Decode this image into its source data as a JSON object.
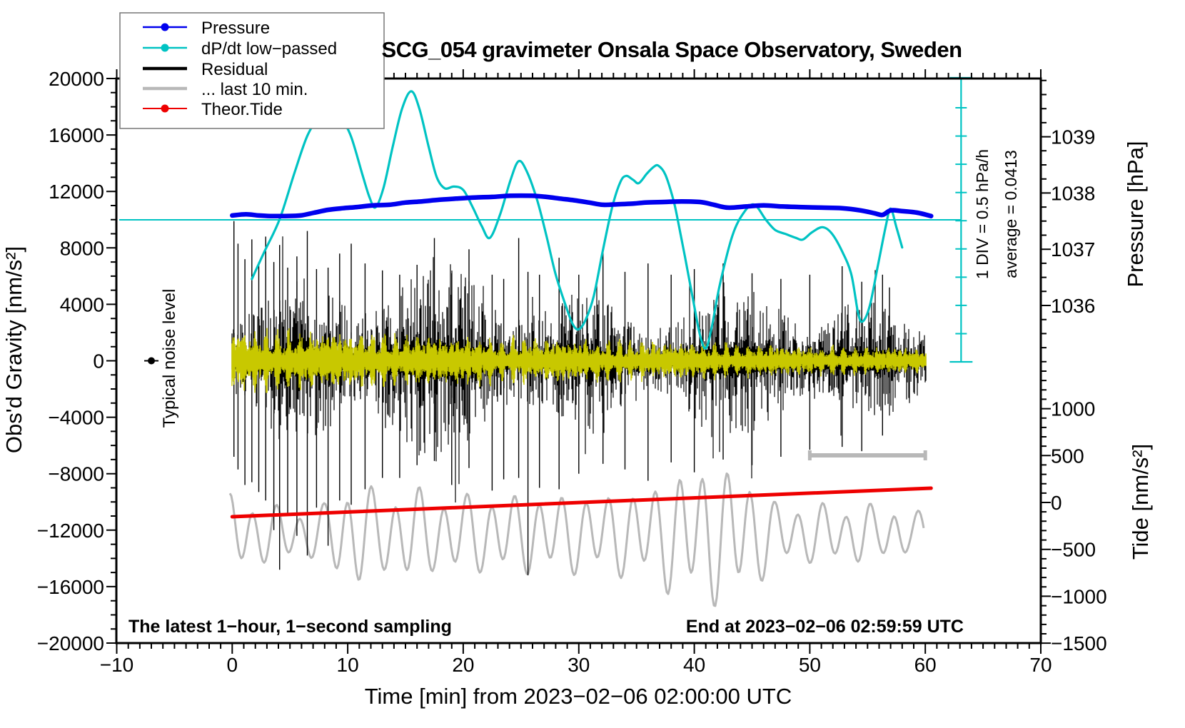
{
  "title": "SCG_054 gravimeter Onsala Space Observatory, Sweden",
  "legend": {
    "items": [
      {
        "label": "Pressure",
        "color": "#0000ee",
        "marker": "dot",
        "width": 2.5
      },
      {
        "label": "dP/dt low−passed",
        "color": "#00c3c3",
        "marker": "dot",
        "width": 2.5
      },
      {
        "label": "Residual",
        "color": "#000000",
        "marker": "none",
        "width": 4.5
      },
      {
        "label": "... last 10 min.",
        "color": "#b8b8b8",
        "marker": "none",
        "width": 4.5
      },
      {
        "label": "Theor.Tide",
        "color": "#ee0000",
        "marker": "dot",
        "width": 2
      }
    ]
  },
  "annotations": {
    "bottom_left": "The latest 1−hour, 1−second sampling",
    "bottom_right": "End at 2023−02−06 02:59:59 UTC",
    "noise_marker_label": "Typical noise level",
    "div_label": "1 DIV = 0.5 hPa/h",
    "avg_label": "average = 0.0413"
  },
  "axes": {
    "x": {
      "label": "Time [min] from 2023−02−06 02:00:00 UTC",
      "min": -10,
      "max": 70,
      "major_ticks": [
        -10,
        0,
        10,
        20,
        30,
        40,
        50,
        60,
        70
      ],
      "minor_step": 1
    },
    "y_left": {
      "label": "Obs'd Gravity [nm/s²]",
      "min": -20000,
      "max": 20000,
      "major_step": 4000,
      "minor_step": 1000
    },
    "y_right_pressure": {
      "label": "Pressure [hPa]",
      "min": 1035,
      "max": 1040,
      "labeled_ticks": [
        1036,
        1037,
        1038,
        1039
      ],
      "minor_step": 0.25
    },
    "y_right_tide": {
      "label": "Tide [nm/s²]",
      "min": -1500,
      "max": 1500,
      "labeled_ticks": [
        1000,
        500,
        0,
        -500,
        -1000,
        -1500
      ],
      "minor_step": 100
    }
  },
  "chart_data": {
    "type": "line",
    "grid": false,
    "legend_position": "top-left",
    "series": [
      {
        "name": "Pressure",
        "units": "hPa",
        "axis": "pressure",
        "color": "#0000ee",
        "points": [
          [
            0,
            1037.6
          ],
          [
            1.2,
            1037.62
          ],
          [
            2.3,
            1037.6
          ],
          [
            3.3,
            1037.59
          ],
          [
            4.6,
            1037.59
          ],
          [
            5.9,
            1037.6
          ],
          [
            7.1,
            1037.65
          ],
          [
            8.3,
            1037.7
          ],
          [
            9.6,
            1037.73
          ],
          [
            10.8,
            1037.75
          ],
          [
            12.2,
            1037.78
          ],
          [
            13.6,
            1037.79
          ],
          [
            15.0,
            1037.83
          ],
          [
            16.4,
            1037.85
          ],
          [
            17.9,
            1037.88
          ],
          [
            19.4,
            1037.9
          ],
          [
            21.0,
            1037.92
          ],
          [
            22.5,
            1037.93
          ],
          [
            24.1,
            1037.95
          ],
          [
            25.9,
            1037.95
          ],
          [
            27.2,
            1037.93
          ],
          [
            28.4,
            1037.9
          ],
          [
            29.6,
            1037.87
          ],
          [
            30.9,
            1037.83
          ],
          [
            32.1,
            1037.79
          ],
          [
            33.4,
            1037.8
          ],
          [
            34.6,
            1037.81
          ],
          [
            35.8,
            1037.83
          ],
          [
            37.4,
            1037.84
          ],
          [
            38.9,
            1037.85
          ],
          [
            40.5,
            1037.84
          ],
          [
            41.7,
            1037.79
          ],
          [
            42.9,
            1037.74
          ],
          [
            44.5,
            1037.76
          ],
          [
            46.0,
            1037.78
          ],
          [
            47.6,
            1037.76
          ],
          [
            49.1,
            1037.75
          ],
          [
            51.0,
            1037.74
          ],
          [
            52.8,
            1037.73
          ],
          [
            54.4,
            1037.69
          ],
          [
            55.6,
            1037.64
          ],
          [
            56.3,
            1037.61
          ],
          [
            57.0,
            1037.69
          ],
          [
            57.9,
            1037.68
          ],
          [
            59.3,
            1037.65
          ],
          [
            60.5,
            1037.59
          ]
        ]
      },
      {
        "name": "dP/dt low-passed",
        "units": "hPa/h",
        "axis": "dpdt",
        "color": "#00c3c3",
        "zero_line_at_average": true,
        "points": [
          [
            1.7,
            -1.05
          ],
          [
            2.8,
            -0.56
          ],
          [
            4.1,
            0.01
          ],
          [
            5.4,
            0.84
          ],
          [
            6.5,
            1.49
          ],
          [
            7.5,
            1.81
          ],
          [
            8.5,
            1.97
          ],
          [
            9.5,
            1.77
          ],
          [
            10.3,
            1.47
          ],
          [
            11.3,
            0.78
          ],
          [
            11.9,
            0.39
          ],
          [
            12.4,
            0.22
          ],
          [
            13.1,
            0.57
          ],
          [
            13.9,
            1.3
          ],
          [
            14.7,
            1.97
          ],
          [
            15.5,
            2.28
          ],
          [
            16.2,
            1.97
          ],
          [
            17.0,
            1.3
          ],
          [
            17.7,
            0.76
          ],
          [
            18.4,
            0.56
          ],
          [
            19.2,
            0.59
          ],
          [
            20.0,
            0.53
          ],
          [
            20.8,
            0.23
          ],
          [
            21.6,
            -0.11
          ],
          [
            22.3,
            -0.32
          ],
          [
            23.2,
            0.1
          ],
          [
            24.1,
            0.71
          ],
          [
            24.8,
            1.04
          ],
          [
            25.5,
            0.86
          ],
          [
            26.4,
            0.35
          ],
          [
            27.2,
            -0.28
          ],
          [
            28.0,
            -0.97
          ],
          [
            28.9,
            -1.54
          ],
          [
            29.5,
            -1.86
          ],
          [
            30.0,
            -1.94
          ],
          [
            30.6,
            -1.77
          ],
          [
            31.3,
            -1.35
          ],
          [
            32.1,
            -0.53
          ],
          [
            32.9,
            0.23
          ],
          [
            33.6,
            0.67
          ],
          [
            34.1,
            0.78
          ],
          [
            34.7,
            0.71
          ],
          [
            35.2,
            0.65
          ],
          [
            35.9,
            0.82
          ],
          [
            36.5,
            0.94
          ],
          [
            36.9,
            0.96
          ],
          [
            37.5,
            0.8
          ],
          [
            38.2,
            0.35
          ],
          [
            38.6,
            -0.03
          ],
          [
            39.2,
            -0.66
          ],
          [
            39.9,
            -1.42
          ],
          [
            40.5,
            -2.05
          ],
          [
            41.0,
            -2.28
          ],
          [
            41.5,
            -1.92
          ],
          [
            42.2,
            -1.16
          ],
          [
            43.3,
            -0.28
          ],
          [
            44.3,
            0.13
          ],
          [
            45.2,
            0.27
          ],
          [
            46.2,
            0.0
          ],
          [
            47.0,
            -0.18
          ],
          [
            47.9,
            -0.25
          ],
          [
            48.8,
            -0.32
          ],
          [
            49.4,
            -0.35
          ],
          [
            50.2,
            -0.22
          ],
          [
            51.1,
            -0.13
          ],
          [
            51.9,
            -0.24
          ],
          [
            52.8,
            -0.56
          ],
          [
            53.6,
            -0.97
          ],
          [
            54.2,
            -1.67
          ],
          [
            54.6,
            -1.8
          ],
          [
            55.2,
            -1.52
          ],
          [
            55.9,
            -0.81
          ],
          [
            56.6,
            -0.09
          ],
          [
            57.0,
            0.2
          ],
          [
            57.5,
            -0.13
          ],
          [
            58.0,
            -0.49
          ]
        ]
      },
      {
        "name": "Theor.Tide",
        "units": "nm/s2 (tide axis)",
        "axis": "tide",
        "color": "#ee0000",
        "points": [
          [
            0,
            -152
          ],
          [
            60.5,
            152
          ]
        ]
      },
      {
        "name": "Residual",
        "units": "nm/s2 (gravity axis)",
        "axis": "gravity",
        "color": "#000000",
        "description": "1-second residual noise band centred on 0",
        "center": 0,
        "typical_half_range": [
          [
            0,
            4800
          ],
          [
            5,
            4550
          ],
          [
            10,
            4300
          ],
          [
            15,
            4150
          ],
          [
            20,
            4050
          ],
          [
            25,
            3950
          ],
          [
            30,
            3800
          ],
          [
            35,
            3650
          ],
          [
            40,
            3550
          ],
          [
            45,
            3350
          ],
          [
            50,
            3150
          ],
          [
            55,
            2950
          ],
          [
            60,
            2800
          ]
        ],
        "spikes_t_up_down": [
          [
            0.15,
            9900,
            6800
          ],
          [
            0.5,
            8300,
            7700
          ],
          [
            1.1,
            7200,
            8800
          ],
          [
            1.7,
            8600,
            8600
          ],
          [
            2.3,
            7000,
            9300
          ],
          [
            2.9,
            8800,
            9900
          ],
          [
            3.6,
            7000,
            12000
          ],
          [
            4.1,
            8200,
            14800
          ],
          [
            4.8,
            6600,
            10800
          ],
          [
            5.6,
            7400,
            12400
          ],
          [
            6.5,
            9200,
            13800
          ],
          [
            7.3,
            6500,
            10400
          ],
          [
            8.3,
            6600,
            13100
          ],
          [
            9.3,
            7600,
            9900
          ],
          [
            10.3,
            8300,
            10200
          ],
          [
            11.5,
            6900,
            9100
          ],
          [
            13,
            6400,
            8300
          ],
          [
            14.5,
            6100,
            8300
          ],
          [
            16,
            6800,
            7400
          ],
          [
            17.5,
            8700,
            7100
          ],
          [
            19,
            6200,
            8800
          ],
          [
            20.5,
            7900,
            7600
          ],
          [
            22.5,
            6100,
            9200
          ],
          [
            23.5,
            5800,
            8400
          ],
          [
            24.8,
            8700,
            8300
          ],
          [
            25.6,
            6300,
            15200
          ],
          [
            26.6,
            6100,
            9000
          ],
          [
            28.3,
            7300,
            9100
          ],
          [
            30,
            6100,
            8000
          ],
          [
            32.1,
            7900,
            7300
          ],
          [
            34,
            6300,
            7700
          ],
          [
            36,
            6900,
            8500
          ],
          [
            38,
            6100,
            7200
          ],
          [
            40,
            6500,
            7900
          ],
          [
            42.5,
            6900,
            7000
          ],
          [
            45,
            6200,
            7400
          ],
          [
            47.5,
            5800,
            6800
          ],
          [
            50,
            6100,
            6300
          ],
          [
            52.8,
            6700,
            6100
          ],
          [
            54.5,
            5600,
            6400
          ],
          [
            56.3,
            6100,
            5300
          ],
          [
            56.9,
            5200,
            2300
          ]
        ]
      },
      {
        "name": "Residual band-passed (yellow overlay)",
        "units": "nm/s2 (gravity axis)",
        "axis": "gravity",
        "color": "#c8c800",
        "center": 0,
        "half_amplitude": [
          [
            0,
            2300
          ],
          [
            10,
            2000
          ],
          [
            20,
            1700
          ],
          [
            30,
            1500
          ],
          [
            40,
            1300
          ],
          [
            50,
            1050
          ],
          [
            60,
            900
          ]
        ]
      },
      {
        "name": "... last 10 min.",
        "units": "nm/s2 (gravity axis)",
        "axis": "gravity",
        "color": "#b8b8b8",
        "description": "magnified oscillation of the last 10 minutes, drawn across the hour",
        "center": -12250,
        "period_min": 2.05,
        "amplitude_envelope": [
          [
            0,
            2900
          ],
          [
            2,
            2300
          ],
          [
            4,
            2000
          ],
          [
            6,
            1800
          ],
          [
            8,
            2100
          ],
          [
            9.6,
            3900
          ],
          [
            11,
            4000
          ],
          [
            12.5,
            2900
          ],
          [
            14,
            3300
          ],
          [
            15.5,
            3500
          ],
          [
            17,
            2900
          ],
          [
            19,
            3000
          ],
          [
            21,
            2800
          ],
          [
            23,
            3000
          ],
          [
            25,
            2800
          ],
          [
            27,
            3000
          ],
          [
            29,
            2800
          ],
          [
            31,
            3000
          ],
          [
            33,
            2900
          ],
          [
            35,
            3300
          ],
          [
            37,
            3700
          ],
          [
            38.5,
            4600
          ],
          [
            40,
            5000
          ],
          [
            42,
            5000
          ],
          [
            44,
            4800
          ],
          [
            45.5,
            3600
          ],
          [
            47,
            2400
          ],
          [
            49,
            2100
          ],
          [
            51,
            2200
          ],
          [
            53,
            2000
          ],
          [
            54.8,
            2300
          ],
          [
            56,
            1700
          ],
          [
            57.3,
            2200
          ],
          [
            58.6,
            1400
          ],
          [
            60,
            1700
          ]
        ]
      }
    ],
    "markers": {
      "noise_level_dot": {
        "t": -7,
        "gravity": 0
      },
      "ten_min_scale_bar": {
        "t_start": 50,
        "t_end": 60,
        "gravity": -6700
      },
      "dpdt_div_scale": {
        "t": 63.1,
        "divisions": 10,
        "div_equals_hpa_per_h": 0.5,
        "average_hpa_per_h": 0.0413
      }
    }
  }
}
